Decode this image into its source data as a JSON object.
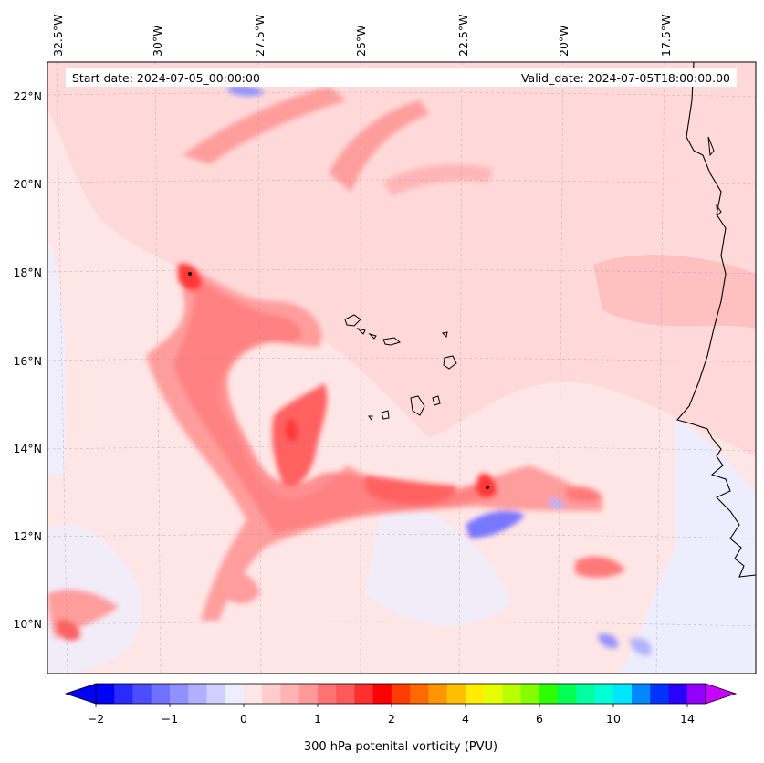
{
  "map": {
    "start_date_label": "Start date: 2024-07-05_00:00:00",
    "valid_date_label": "Valid_date: 2024-07-05T18:00:00.00",
    "longitude_labels": [
      "32.5°W",
      "30°W",
      "27.5°W",
      "25°W",
      "22.5°W",
      "20°W",
      "17.5°W"
    ],
    "latitude_labels": [
      "22°N",
      "20°N",
      "18°N",
      "16°N",
      "14°N",
      "12°N",
      "10°N"
    ],
    "features": [
      "west-african-coastline",
      "cape-verde-islands"
    ],
    "gridlines": true
  },
  "colorbar": {
    "label": "300 hPa potenital vorticity (PVU)",
    "tick_labels": [
      "−2",
      "−1",
      "0",
      "1",
      "2",
      "4",
      "6",
      "10",
      "14"
    ],
    "levels": [
      "#0000ff",
      "#2a2aff",
      "#4d4dff",
      "#7171ff",
      "#9090ff",
      "#b0b0ff",
      "#d0d0ff",
      "#eeeeff",
      "#ffe6e6",
      "#ffcccc",
      "#ffb3b3",
      "#ff9999",
      "#ff7373",
      "#ff5a5a",
      "#ff2f2f",
      "#ff0000",
      "#ff3d00",
      "#ff6a00",
      "#ff9500",
      "#ffbf00",
      "#ffec00",
      "#e6ff00",
      "#baff00",
      "#84ff00",
      "#2bff00",
      "#00ff55",
      "#00ff9e",
      "#00ffd5",
      "#00e6ff",
      "#0088ff",
      "#0033ff",
      "#2a00ff",
      "#9400ff"
    ],
    "extend_low_color": "#0000ff",
    "extend_high_color": "#c800ff"
  }
}
